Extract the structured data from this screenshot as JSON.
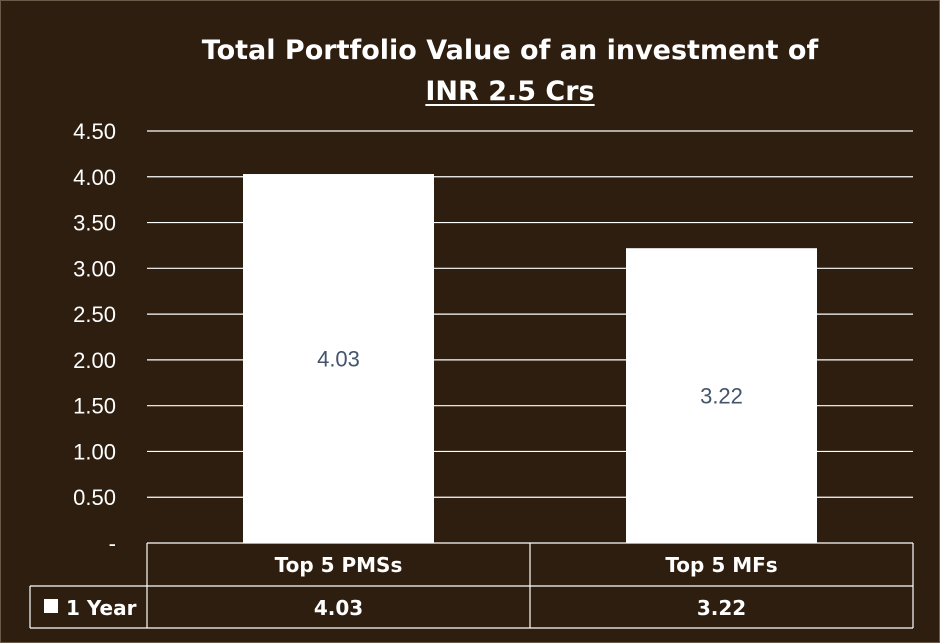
{
  "title_line1": "Total Portfolio Value of an investment of",
  "title_line2": "INR 2.5 Crs",
  "y_tick_labels": [
    "-",
    "0.50",
    "1.00",
    "1.50",
    "2.00",
    "2.50",
    "3.00",
    "3.50",
    "4.00",
    "4.50"
  ],
  "colors": {
    "background": "#2e1e0f",
    "bar": "#ffffff",
    "gridline": "#ffffff",
    "data_label": "#44546a",
    "text": "#ffffff"
  },
  "chart_data": {
    "type": "bar",
    "title": "Total Portfolio Value of an investment of INR 2.5 Crs",
    "categories": [
      "Top 5 PMSs",
      "Top 5 MFs"
    ],
    "series": [
      {
        "name": "1 Year",
        "values": [
          4.03,
          3.22
        ]
      }
    ],
    "data_labels": [
      "4.03",
      "3.22"
    ],
    "table_values": [
      "4.03",
      "3.22"
    ],
    "ylim": [
      0,
      4.5
    ],
    "ytick_step": 0.5,
    "grid": true,
    "data_table": true,
    "legend": "data-table-key"
  }
}
